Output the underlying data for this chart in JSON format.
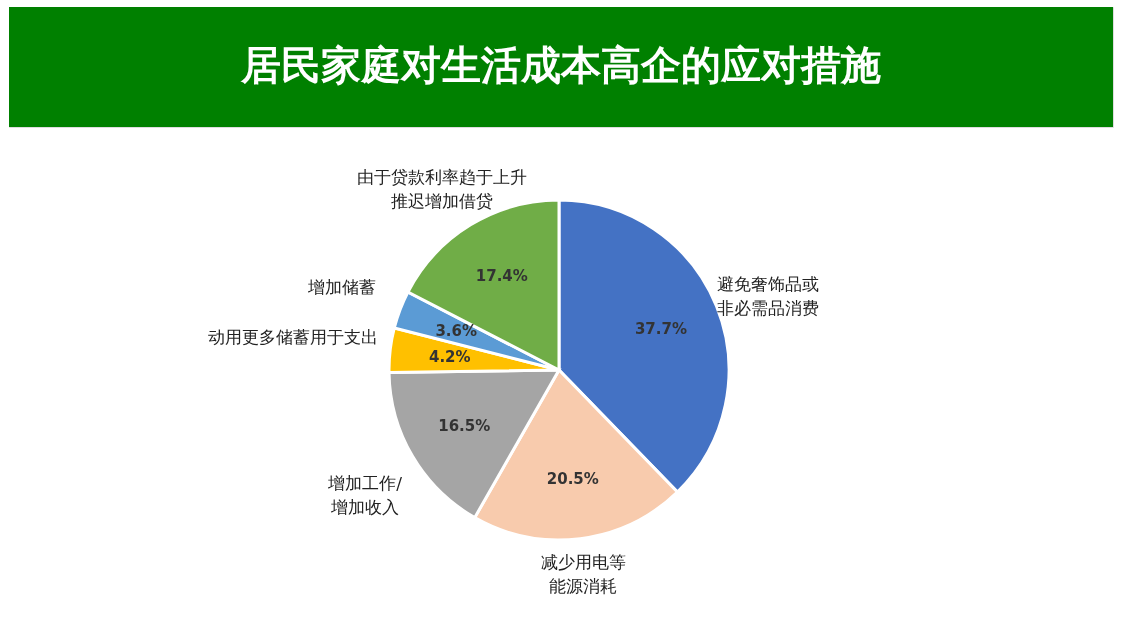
{
  "chart_data": {
    "type": "pie",
    "title": "居民家庭对生活成本高企的应对措施",
    "categories": [
      "避免奢饰品或非必需品消费",
      "减少用电等能源消耗",
      "增加工作/增加收入",
      "动用更多储蓄用于支出",
      "增加储蓄",
      "由于贷款利率趋于上升推迟增加借贷"
    ],
    "values": [
      37.7,
      20.5,
      16.5,
      4.2,
      3.6,
      17.4
    ],
    "value_labels": [
      "37.7%",
      "20.5%",
      "16.5%",
      "4.2%",
      "3.6%",
      "17.4%"
    ],
    "colors": [
      "#4472c4",
      "#f8cbad",
      "#a5a5a5",
      "#ffc000",
      "#5b9bd5",
      "#70ad47"
    ],
    "legend": false
  }
}
